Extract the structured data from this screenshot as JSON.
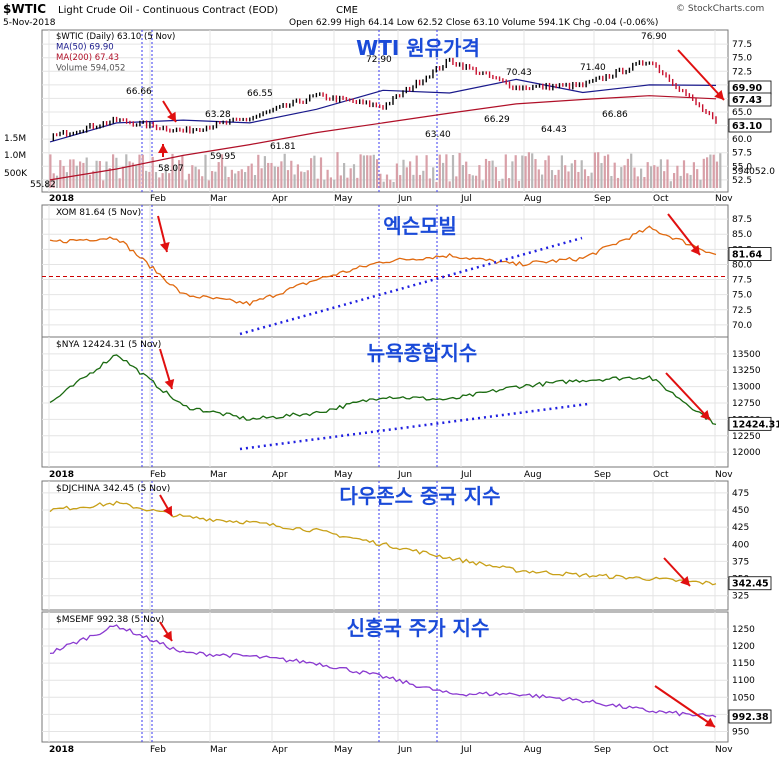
{
  "header": {
    "symbol": "$WTIC",
    "name": "Light Crude Oil - Continuous Contract (EOD)",
    "exchange": "CME",
    "date": "5-Nov-2018",
    "quote": "Open 62.99 High 64.14 Low 62.52 Close 63.10 Volume 594.1K Chg -0.04 (-0.06%)",
    "brand": "© StockCharts.com"
  },
  "colors": {
    "bg": "#ffffff",
    "grid": "#e4e4e4",
    "vline": "#3a3af0",
    "ma50": "#1a1a8c",
    "ma200": "#b01028",
    "volume": "#d8a0a8",
    "volume_gray": "#b8b8b8",
    "oil_up": "#000000",
    "oil_down": "#c8102e",
    "xom": "#e06a10",
    "nya": "#1a6a10",
    "djchina": "#c8a018",
    "msemf": "#8a3ad0",
    "title_blue": "#1a4ad8",
    "arrow": "#e01010",
    "dotted_trend": "#2020e0"
  },
  "months": [
    "2018",
    "Feb",
    "Mar",
    "Apr",
    "May",
    "Jun",
    "Jul",
    "Aug",
    "Sep",
    "Oct",
    "Nov"
  ],
  "chart_data": [
    {
      "type": "line",
      "title": "WTI 원유가격",
      "legend": [
        "$WTIC (Daily) 63.10 (5 Nov)",
        "MA(50) 69.90",
        "MA(200) 67.43",
        "Volume 594,052"
      ],
      "x": [
        "2018",
        "Feb",
        "Mar",
        "Apr",
        "May",
        "Jun",
        "Jul",
        "Aug",
        "Sep",
        "Oct",
        "Nov"
      ],
      "series": [
        {
          "name": "$WTIC",
          "values": [
            60.4,
            63.5,
            61.5,
            63.8,
            68.0,
            66.0,
            74.5,
            69.5,
            69.9,
            74.5,
            63.1
          ]
        }
      ],
      "ma50": [
        59.5,
        63.0,
        63.5,
        63.0,
        65.5,
        69.0,
        68.5,
        71.0,
        68.6,
        70.0,
        69.9
      ],
      "ma200": [
        52.5,
        54.5,
        57.0,
        59.0,
        61.2,
        63.0,
        64.8,
        66.5,
        67.3,
        68.0,
        67.43
      ],
      "price_labels": [
        "66.66",
        "63.28",
        "66.55",
        "72.90",
        "70.43",
        "71.40",
        "76.90",
        "58.07",
        "59.95",
        "61.81",
        "63.40",
        "66.29",
        "64.43",
        "66.86",
        "55.82"
      ],
      "last_labels": [
        "69.90",
        "67.43",
        "63.10"
      ],
      "y_ticks": [
        "77.5",
        "75.0",
        "72.5",
        "70.0",
        "67.5",
        "65.0",
        "62.5",
        "60.0",
        "57.5",
        "55.0",
        "52.5"
      ],
      "ylim": [
        51,
        79
      ],
      "volume_ticks": [
        "1.5M",
        "1.0M",
        "500K"
      ],
      "volume_last": "594052.0"
    },
    {
      "type": "line",
      "title": "엑슨모빌",
      "legend": "XOM 81.64 (5 Nov)",
      "x": [
        "2018",
        "Feb",
        "Mar",
        "Apr",
        "May",
        "Jun",
        "Jul",
        "Aug",
        "Sep",
        "Oct",
        "Nov"
      ],
      "series": [
        {
          "name": "XOM",
          "values": [
            83.7,
            84.5,
            75.0,
            73.5,
            77.5,
            80.5,
            81.5,
            80.0,
            81.0,
            86.0,
            81.64
          ]
        }
      ],
      "y_ticks": [
        "87.5",
        "85.0",
        "82.5",
        "80.0",
        "77.5",
        "75.0",
        "72.5",
        "70.0"
      ],
      "ylim": [
        68.5,
        89
      ],
      "last_label": "81.64",
      "reference_line": 78.0
    },
    {
      "type": "line",
      "title": "뉴욕종합지수",
      "legend": "$NYA 12424.31 (5 Nov)",
      "x": [
        "2018",
        "Feb",
        "Mar",
        "Apr",
        "May",
        "Jun",
        "Jul",
        "Aug",
        "Sep",
        "Oct",
        "Nov"
      ],
      "series": [
        {
          "name": "$NYA",
          "values": [
            12750,
            13500,
            12700,
            12500,
            12600,
            12850,
            12800,
            13000,
            13100,
            13150,
            12424.31
          ]
        }
      ],
      "y_ticks": [
        "13500",
        "13250",
        "13000",
        "12750",
        "12500",
        "12250",
        "12000"
      ],
      "ylim": [
        11850,
        13650
      ],
      "last_label": "12424.31"
    },
    {
      "type": "line",
      "title": "다우존스 중국 지수",
      "legend": "$DJCHINA 342.45 (5 Nov)",
      "x": [
        "2018",
        "Feb",
        "Mar",
        "Apr",
        "May",
        "Jun",
        "Jul",
        "Aug",
        "Sep",
        "Oct",
        "Nov"
      ],
      "series": [
        {
          "name": "$DJCHINA",
          "values": [
            450,
            460,
            440,
            432,
            420,
            400,
            380,
            362,
            355,
            350,
            342.45
          ]
        }
      ],
      "y_ticks": [
        "475",
        "450",
        "425",
        "400",
        "375",
        "350",
        "325"
      ],
      "ylim": [
        310,
        485
      ],
      "last_label": "342.45"
    },
    {
      "type": "line",
      "title": "신흥국 주가 지수",
      "legend": "$MSEMF 992.38 (5 Nov)",
      "x": [
        "2018",
        "Feb",
        "Mar",
        "Apr",
        "May",
        "Jun",
        "Jul",
        "Aug",
        "Sep",
        "Oct",
        "Nov"
      ],
      "series": [
        {
          "name": "$MSEMF",
          "values": [
            1180,
            1260,
            1180,
            1170,
            1150,
            1110,
            1060,
            1060,
            1040,
            1010,
            992.38
          ]
        }
      ],
      "y_ticks": [
        "1250",
        "1200",
        "1150",
        "1100",
        "1050",
        "1000",
        "950"
      ],
      "ylim": [
        925,
        1285
      ],
      "last_label": "992.38"
    }
  ]
}
